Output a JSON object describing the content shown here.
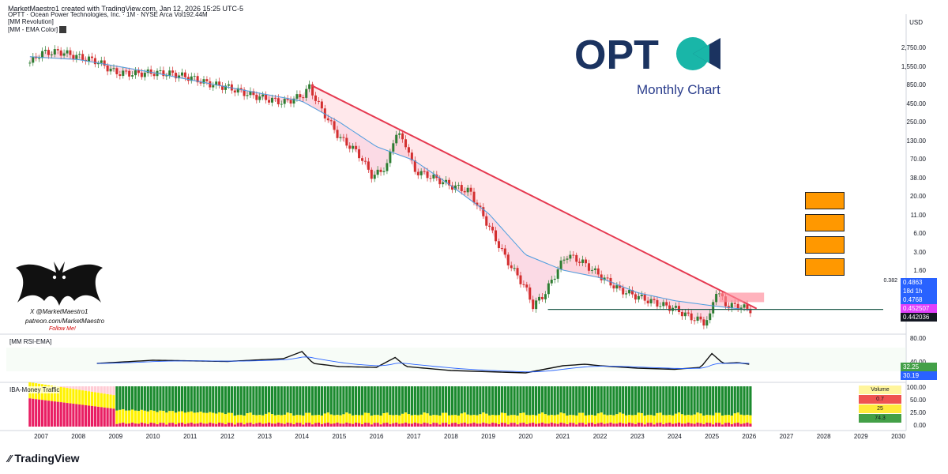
{
  "header": {
    "title": "MarketMaestro1 created with TradingView.com, Jan 12, 2026 15:25 UTC-5",
    "symbol_line": "OPTT · Ocean Power Technologies, Inc. · 1M · NYSE Arca   Vol192.44M",
    "indicator_1": "[MM Revolution]",
    "indicator_2": "[MM - EMA Color]"
  },
  "branding": {
    "logo_text": "OPT",
    "subtitle": "Monthly Chart",
    "watermark_line1": "X @MarketMaestro1",
    "watermark_line2": "patreon.com/MarketMaestro",
    "watermark_line3": "Follow Me!",
    "footer": "TradingView",
    "colors": {
      "logo_dark": "#1b3360",
      "logo_teal": "#19b6a8",
      "subtitle": "#2a3d8c"
    }
  },
  "price_scale": {
    "currency": "USD",
    "ticks": [
      "2,750.00",
      "1,550.00",
      "850.00",
      "450.00",
      "250.00",
      "130.00",
      "70.00",
      "38.00",
      "20.00",
      "11.00",
      "6.00",
      "3.00",
      "1.60",
      "0.9000"
    ],
    "fib_level": "0.382",
    "tags": [
      {
        "label": "0.4863",
        "color": "#2962ff"
      },
      {
        "label": "18d 1h",
        "color": "#2962ff"
      },
      {
        "label": "0.4768",
        "color": "#2962ff"
      },
      {
        "label": "0.452507",
        "color": "#e040fb"
      },
      {
        "label": "0.442036",
        "color": "#131722"
      }
    ]
  },
  "rsi_pane": {
    "label": "[MM RSI-EMA]",
    "ticks": [
      "80.00",
      "40.00"
    ],
    "tags": [
      {
        "label": "32.25",
        "color": "#43a047"
      },
      {
        "label": "30.19",
        "color": "#2962ff"
      }
    ]
  },
  "money_pane": {
    "label": "IBA-Money Traffic",
    "ticks": [
      "100.00",
      "50.00",
      "25.00",
      "0.00"
    ],
    "volume_table": {
      "title": "Volume",
      "rows": [
        "0.7",
        "25",
        "74.3"
      ],
      "colors": [
        "#fff59d",
        "#ef5350",
        "#ffeb3b",
        "#43a047"
      ]
    }
  },
  "time_axis": [
    "2007",
    "2008",
    "2009",
    "2010",
    "2011",
    "2012",
    "2013",
    "2014",
    "2015",
    "2016",
    "2017",
    "2018",
    "2019",
    "2020",
    "2021",
    "2022",
    "2023",
    "2024",
    "2025",
    "2026",
    "2027",
    "2028",
    "2029",
    "2030"
  ],
  "chart_data": {
    "type": "candlestick",
    "title": "OPTT · Ocean Power Technologies, Inc. · 1M · NYSE Arca",
    "scale": "log",
    "ylim": [
      0.3,
      5000
    ],
    "x_range": [
      2006.6,
      2030.4
    ],
    "series": [
      {
        "name": "OPTT monthly close",
        "x": [
          2006.7,
          2007.0,
          2007.5,
          2008.0,
          2008.5,
          2009.0,
          2009.5,
          2010.0,
          2010.5,
          2011.0,
          2011.5,
          2012.0,
          2012.5,
          2013.0,
          2013.5,
          2014.0,
          2014.2,
          2014.5,
          2015.0,
          2015.5,
          2015.9,
          2016.3,
          2016.5,
          2016.8,
          2017.0,
          2017.5,
          2018.0,
          2018.5,
          2019.0,
          2019.5,
          2020.0,
          2020.2,
          2020.5,
          2020.9,
          2021.1,
          2021.5,
          2022.0,
          2022.5,
          2023.0,
          2023.5,
          2024.0,
          2024.4,
          2024.8,
          2024.95,
          2025.1,
          2025.4,
          2025.7,
          2026.0
        ],
        "values": [
          1800,
          2500,
          2600,
          2200,
          1900,
          1300,
          1250,
          1300,
          1250,
          1100,
          900,
          800,
          650,
          550,
          480,
          600,
          800,
          400,
          150,
          90,
          40,
          60,
          180,
          120,
          50,
          40,
          30,
          25,
          8,
          2.5,
          1.0,
          0.55,
          0.8,
          2.0,
          3.0,
          2.4,
          1.5,
          0.95,
          0.75,
          0.6,
          0.5,
          0.38,
          0.32,
          0.38,
          0.95,
          0.55,
          0.55,
          0.4863
        ]
      },
      {
        "name": "EMA",
        "x": [
          2006.7,
          2008.0,
          2010.0,
          2012.0,
          2014.0,
          2015.0,
          2016.0,
          2017.0,
          2018.0,
          2019.0,
          2020.0,
          2021.0,
          2022.0,
          2023.0,
          2024.0,
          2025.0,
          2026.0
        ],
        "values": [
          2200,
          2000,
          1300,
          800,
          500,
          250,
          110,
          70,
          30,
          12,
          3,
          1.8,
          1.4,
          0.85,
          0.65,
          0.55,
          0.4768
        ]
      }
    ],
    "trendline": {
      "from": {
        "x": 2014.25,
        "y": 850
      },
      "to": {
        "x": 2026.2,
        "y": 0.5
      }
    },
    "fib_level": {
      "label": "0.382",
      "value": 0.4863,
      "from_x": 2020.6
    },
    "resistance_zone": {
      "x0": 2025.2,
      "x1": 2026.4,
      "y0": 0.62,
      "y1": 0.85
    },
    "rsi": {
      "ylim": [
        0,
        100
      ],
      "x": [
        2008.5,
        2010.0,
        2012.0,
        2013.5,
        2014.0,
        2014.3,
        2015.0,
        2016.0,
        2016.5,
        2016.8,
        2018.0,
        2020.0,
        2021.0,
        2021.6,
        2022.0,
        2023.0,
        2024.0,
        2024.7,
        2025.0,
        2025.3,
        2025.7,
        2026.0
      ],
      "values": [
        40,
        48,
        45,
        52,
        70,
        40,
        32,
        30,
        55,
        32,
        22,
        16,
        34,
        38,
        34,
        28,
        25,
        30,
        65,
        40,
        42,
        38
      ]
    }
  }
}
